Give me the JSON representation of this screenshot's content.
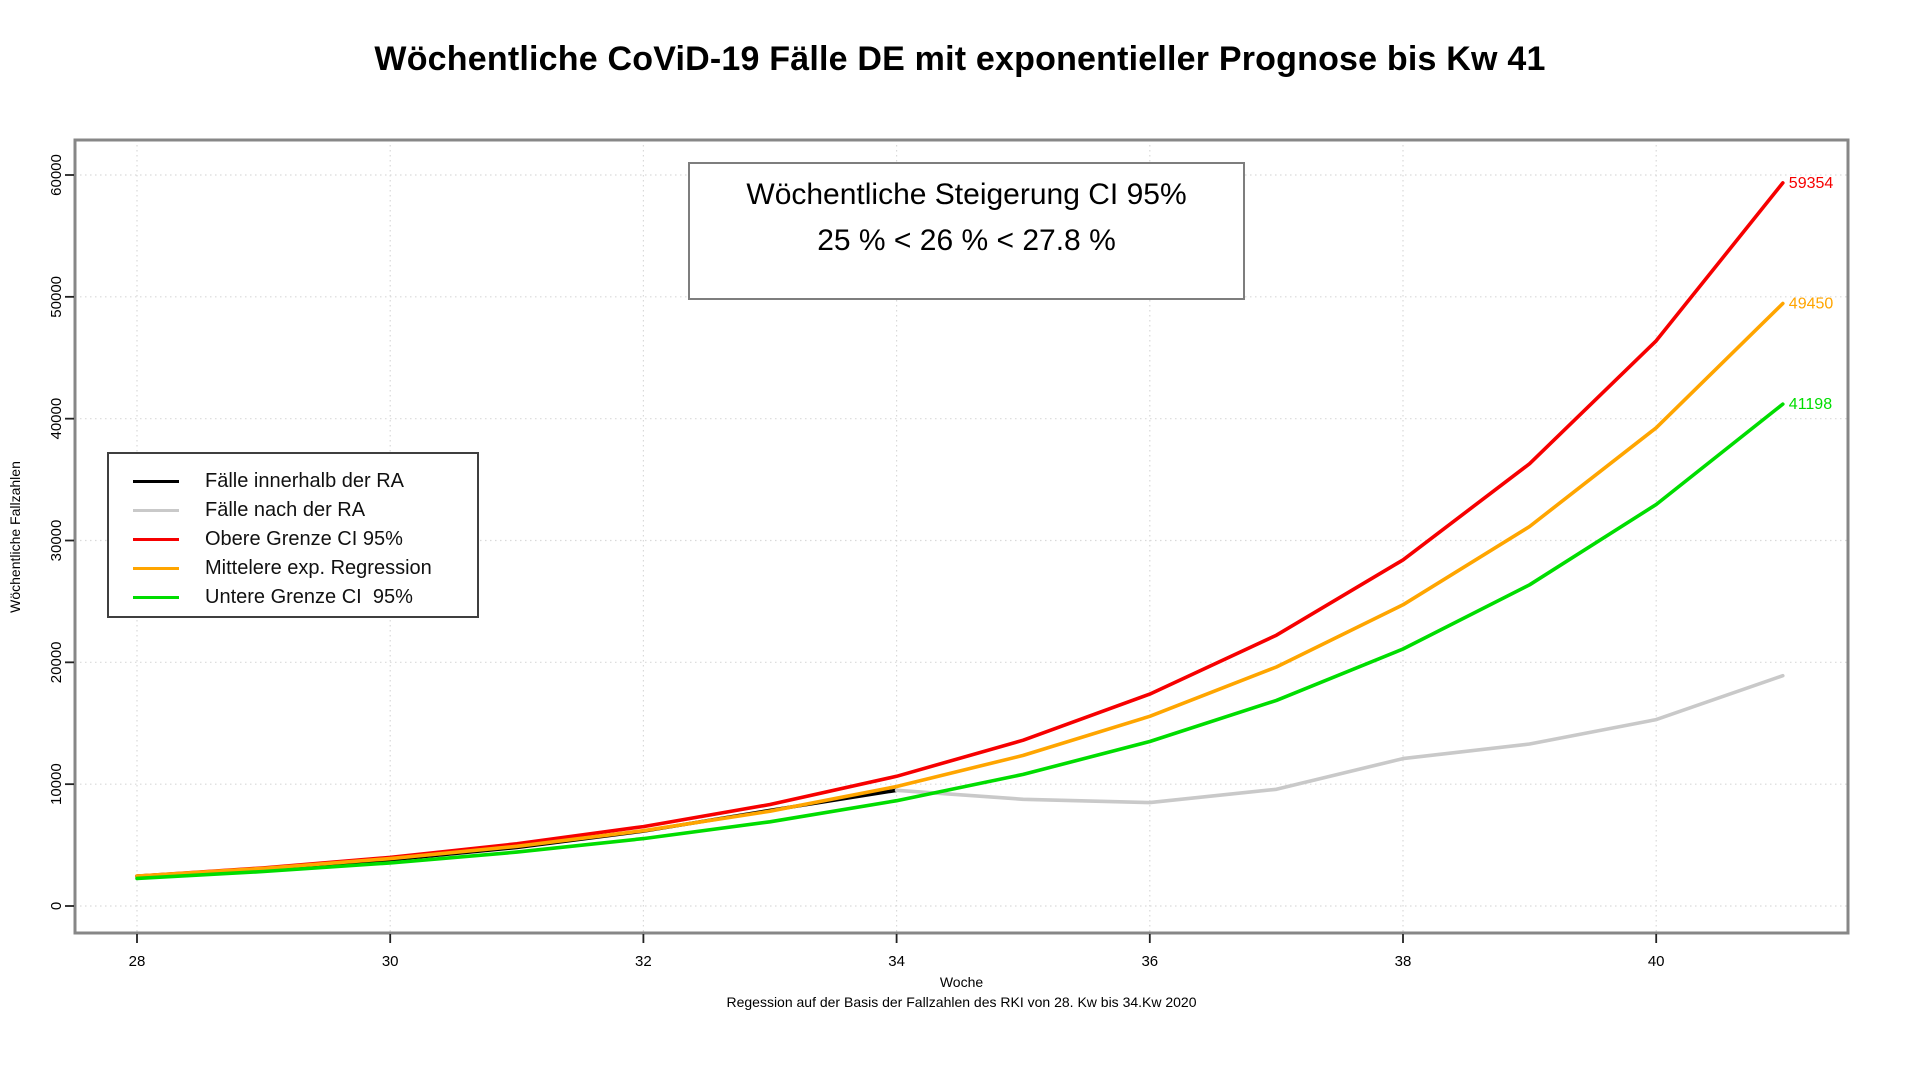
{
  "title": "Wöchentliche CoViD-19 Fälle DE mit exponentieller Prognose bis Kw 41",
  "annotation": {
    "line1": "Wöchentliche Steigerung CI 95%",
    "line2": "25 % < 26 % < 27.8 %"
  },
  "axes": {
    "x_title": "Woche",
    "x_caption": "Regession auf der Basis der Fallzahlen des RKI von 28. Kw bis 34.Kw 2020",
    "y_title": "Wöchentliche Fallzahlen"
  },
  "chart_data": {
    "type": "line",
    "title": "Wöchentliche CoViD-19 Fälle DE mit exponentieller Prognose bis Kw 41",
    "xlabel": "Woche",
    "ylabel": "Wöchentliche Fallzahlen",
    "xlim": [
      27.5,
      41.5
    ],
    "ylim": [
      0,
      62800
    ],
    "x_ticks": [
      28,
      30,
      32,
      34,
      36,
      38,
      40
    ],
    "y_ticks": [
      0,
      10000,
      20000,
      30000,
      40000,
      50000,
      60000
    ],
    "grid": "dotted",
    "legend_position": "left-middle",
    "series": [
      {
        "id": "cases-within-ra",
        "name": "Fälle innerhalb der RA",
        "color": "#000000",
        "x": [
          28,
          29,
          30,
          31,
          32,
          33,
          34
        ],
        "values": [
          2450,
          3050,
          3800,
          4800,
          6150,
          7850,
          9500
        ]
      },
      {
        "id": "cases-after-ra",
        "name": "Fälle nach der RA",
        "color": "#c9c9c9",
        "x": [
          34,
          35,
          36,
          37,
          38,
          39,
          40,
          41
        ],
        "values": [
          9500,
          8760,
          8490,
          9580,
          12100,
          13300,
          15300,
          18900
        ]
      },
      {
        "id": "upper-ci-95",
        "name": "Obere Grenze CI 95%",
        "color": "#f60000",
        "x": [
          28,
          29,
          30,
          31,
          32,
          33,
          34,
          35,
          36,
          37,
          38,
          39,
          40,
          41
        ],
        "values": [
          2444,
          3124,
          3992,
          5102,
          6520,
          8332,
          10649,
          13609,
          17392,
          22227,
          28406,
          36303,
          46395,
          59354
        ],
        "end_label": "59354"
      },
      {
        "id": "mid-exp-regression",
        "name": "Mittelere exp. Regression",
        "color": "#ffa500",
        "x": [
          28,
          29,
          30,
          31,
          32,
          33,
          34,
          35,
          36,
          37,
          38,
          39,
          40,
          41
        ],
        "values": [
          2451,
          3088,
          3891,
          4903,
          6178,
          7784,
          9808,
          12358,
          15571,
          19620,
          24721,
          31148,
          39247,
          49450
        ],
        "end_label": "49450"
      },
      {
        "id": "lower-ci-95",
        "name": "Untere Grenze CI  95%",
        "color": "#00dd00",
        "x": [
          28,
          29,
          30,
          31,
          32,
          33,
          34,
          35,
          36,
          37,
          38,
          39,
          40,
          41
        ],
        "values": [
          2265,
          2831,
          3539,
          4424,
          5530,
          6912,
          8640,
          10800,
          13500,
          16875,
          21094,
          26367,
          32959,
          41198
        ],
        "end_label": "41198"
      }
    ]
  }
}
